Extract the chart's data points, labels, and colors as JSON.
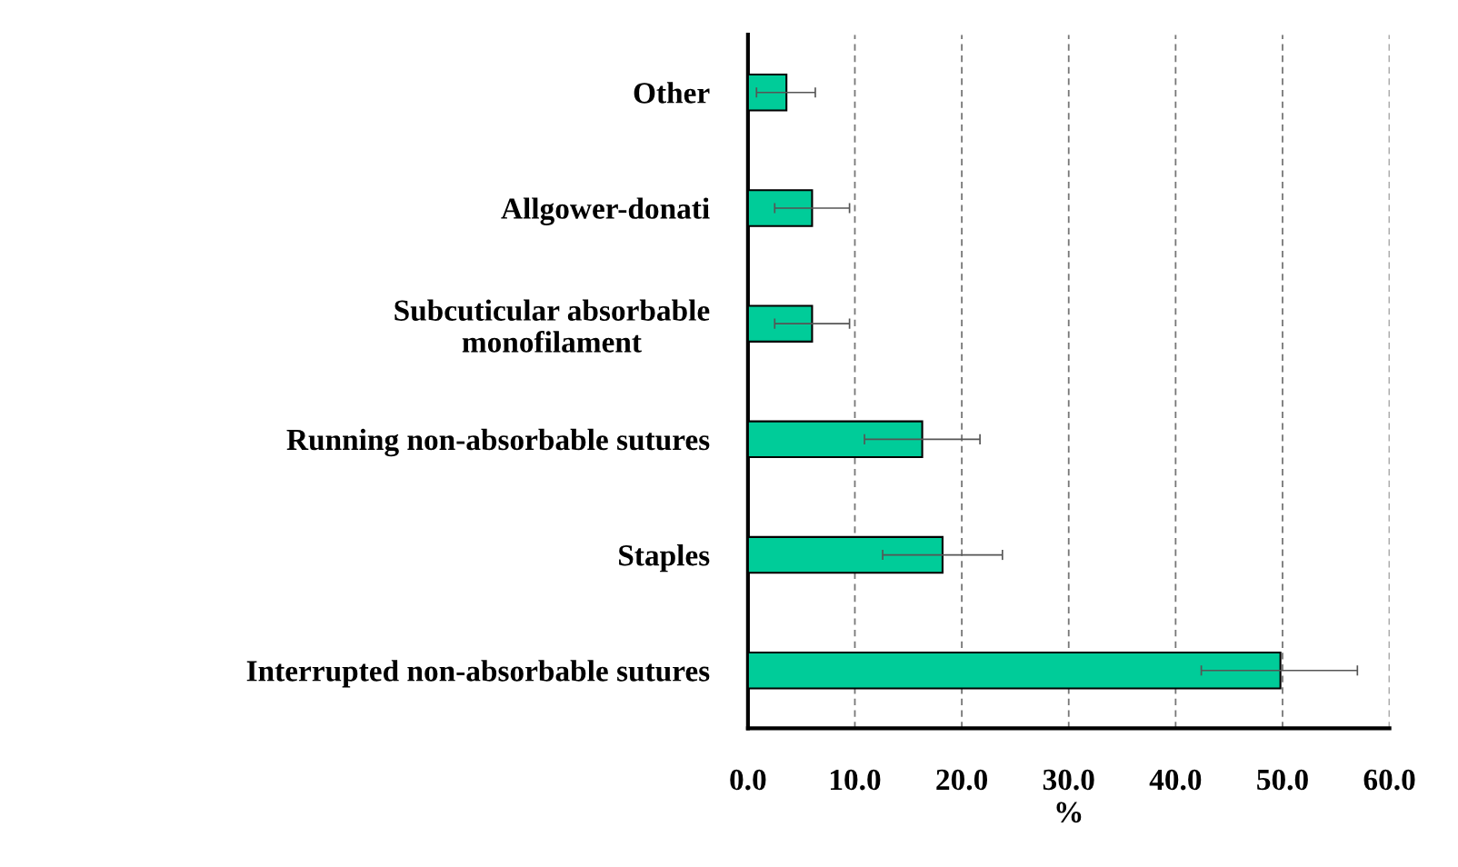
{
  "chart_data": {
    "type": "bar",
    "orientation": "horizontal",
    "xlabel": "%",
    "categories": [
      "Other",
      "Allgower-donati",
      "Subcuticular absorbable\nmonofilament",
      "Running non-absorbable sutures",
      "Staples",
      "Interrupted non-absorbable sutures"
    ],
    "values": [
      3.6,
      6.0,
      6.0,
      16.3,
      18.2,
      49.8
    ],
    "errors": [
      [
        0.8,
        6.3
      ],
      [
        2.5,
        9.5
      ],
      [
        2.5,
        9.5
      ],
      [
        10.9,
        21.7
      ],
      [
        12.6,
        23.8
      ],
      [
        42.4,
        57.0
      ]
    ],
    "color": "#00cc99",
    "xlim": [
      0,
      60
    ],
    "xticks": [
      {
        "value": 0,
        "label": "0.0"
      },
      {
        "value": 10,
        "label": "10.0"
      },
      {
        "value": 20,
        "label": "20.0"
      },
      {
        "value": 30,
        "label": "30.0"
      },
      {
        "value": 40,
        "label": "40.0"
      },
      {
        "value": 50,
        "label": "50.0"
      },
      {
        "value": 60,
        "label": "60.0"
      }
    ],
    "grid": "x"
  }
}
